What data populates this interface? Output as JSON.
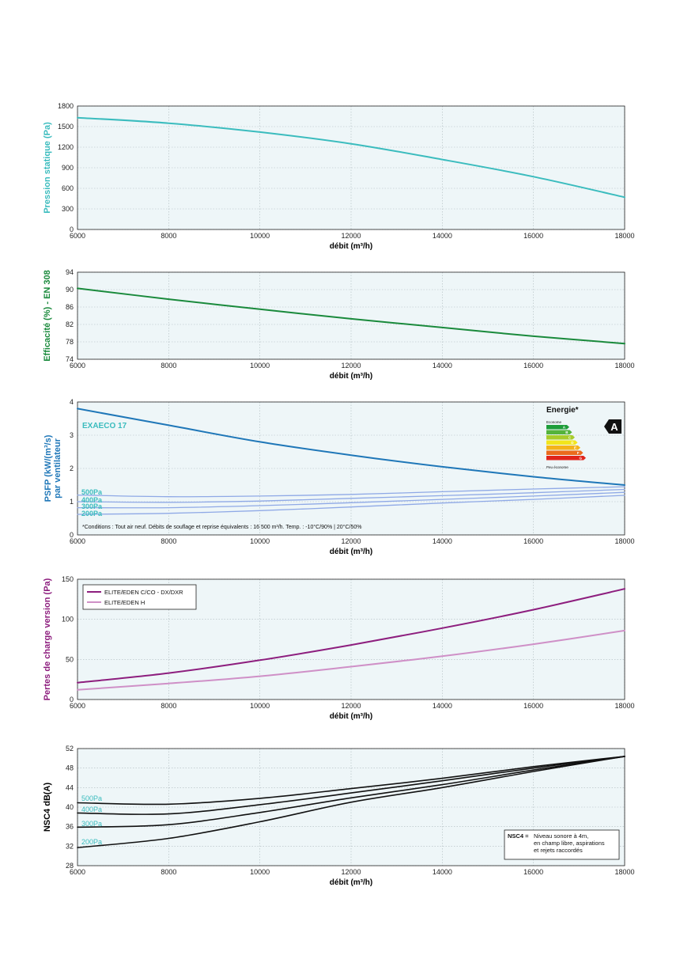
{
  "colors": {
    "panel_bg": "#eef6f8",
    "grid": "#aeb9bd",
    "pression": "#3bbcbe",
    "efficacite": "#1a8a3c",
    "psfp": "#1f77b8",
    "psfp_low": "#8fa9e6",
    "pertes": "#8d1e7e",
    "pertes_light": "#cf90c7",
    "nsc4": "#111111",
    "teal_text": "#3bbcbe"
  },
  "chart_data": [
    {
      "id": "pression",
      "type": "line",
      "title": "",
      "xlabel": "débit (m³/h)",
      "ylabel": "Pression statique (Pa)",
      "xlim": [
        6000,
        18000
      ],
      "ylim": [
        0,
        1800
      ],
      "xticks": [
        "6000",
        "8000",
        "10000",
        "12000",
        "14000",
        "16000",
        "18000"
      ],
      "yticks": [
        "0",
        "300",
        "600",
        "900",
        "1200",
        "1500",
        "1800"
      ],
      "grid": true,
      "series": [
        {
          "name": "",
          "color": "pression",
          "width": 2,
          "x": [
            6000,
            8000,
            10000,
            12000,
            14000,
            16000,
            18000
          ],
          "y": [
            1630,
            1550,
            1420,
            1250,
            1020,
            770,
            470
          ]
        }
      ]
    },
    {
      "id": "efficacite",
      "type": "line",
      "title": "",
      "xlabel": "débit (m³/h)",
      "ylabel": "Efficacité (%) - EN 308",
      "xlim": [
        6000,
        18000
      ],
      "ylim": [
        74,
        94
      ],
      "xticks": [
        "6000",
        "8000",
        "10000",
        "12000",
        "14000",
        "16000",
        "18000"
      ],
      "yticks": [
        "74",
        "78",
        "82",
        "86",
        "90",
        "94"
      ],
      "grid": true,
      "series": [
        {
          "name": "",
          "color": "efficacite",
          "width": 2,
          "x": [
            6000,
            8000,
            10000,
            12000,
            14000,
            16000,
            18000
          ],
          "y": [
            90.3,
            87.8,
            85.5,
            83.3,
            81.3,
            79.3,
            77.6
          ]
        }
      ]
    },
    {
      "id": "psfp",
      "type": "line",
      "title": "",
      "xlabel": "débit (m³/h)",
      "ylabel": "PSFP (kW/(m³/s)",
      "ylabel2": "par ventilateur",
      "xlim": [
        6000,
        18000
      ],
      "ylim": [
        0,
        4
      ],
      "xticks": [
        "6000",
        "8000",
        "10000",
        "12000",
        "14000",
        "16000",
        "18000"
      ],
      "yticks": [
        "0",
        "1",
        "2",
        "3",
        "4"
      ],
      "grid": true,
      "series": [
        {
          "name": "EXAECO 17",
          "color": "psfp",
          "width": 2,
          "x": [
            6000,
            8000,
            10000,
            12000,
            14000,
            16000,
            18000
          ],
          "y": [
            3.8,
            3.3,
            2.8,
            2.4,
            2.05,
            1.75,
            1.5
          ]
        },
        {
          "name": "500Pa",
          "color": "psfp_low",
          "width": 1.3,
          "x": [
            6000,
            8000,
            10000,
            12000,
            14000,
            16000,
            18000
          ],
          "y": [
            1.2,
            1.15,
            1.17,
            1.22,
            1.3,
            1.38,
            1.45
          ]
        },
        {
          "name": "400Pa",
          "color": "psfp_low",
          "width": 1.3,
          "x": [
            6000,
            8000,
            10000,
            12000,
            14000,
            16000,
            18000
          ],
          "y": [
            1.0,
            0.98,
            1.02,
            1.1,
            1.18,
            1.27,
            1.37
          ]
        },
        {
          "name": "300Pa",
          "color": "psfp_low",
          "width": 1.3,
          "x": [
            6000,
            8000,
            10000,
            12000,
            14000,
            16000,
            18000
          ],
          "y": [
            0.82,
            0.82,
            0.88,
            0.97,
            1.07,
            1.17,
            1.28
          ]
        },
        {
          "name": "200Pa",
          "color": "psfp_low",
          "width": 1.3,
          "x": [
            6000,
            8000,
            10000,
            12000,
            14000,
            16000,
            18000
          ],
          "y": [
            0.62,
            0.65,
            0.73,
            0.84,
            0.96,
            1.07,
            1.19
          ]
        }
      ],
      "series_labels": [
        "500Pa",
        "400Pa",
        "300Pa",
        "200Pa"
      ],
      "annotation_curve": "EXAECO 17",
      "note": "*Conditions : Tout air neuf. Débits de souflage et reprise équivalents : 16 500 m³/h. Temp. : -10°C/90% | 20°C/50%",
      "energy": {
        "title": "Energie*",
        "top_label": "Econome",
        "bottom_label": "Peu économe",
        "rating": "A",
        "class_letters": [
          "A",
          "B",
          "C",
          "D",
          "E",
          "F",
          "G"
        ],
        "class_colors": [
          "#1e9d3a",
          "#54b33c",
          "#a8cc2b",
          "#f2e51c",
          "#f4b31a",
          "#eb6a1d",
          "#e0241b"
        ]
      }
    },
    {
      "id": "pertes",
      "type": "line",
      "title": "",
      "xlabel": "débit (m³/h)",
      "ylabel": "Pertes de charge version (Pa)",
      "xlim": [
        6000,
        18000
      ],
      "ylim": [
        0,
        150
      ],
      "xticks": [
        "6000",
        "8000",
        "10000",
        "12000",
        "14000",
        "16000",
        "18000"
      ],
      "yticks": [
        "0",
        "50",
        "100",
        "150"
      ],
      "grid": true,
      "legend": "top-left",
      "series": [
        {
          "name": "ELITE/EDEN C/CO - DX/DXR",
          "color": "pertes",
          "width": 2,
          "x": [
            6000,
            8000,
            10000,
            12000,
            14000,
            16000,
            18000
          ],
          "y": [
            21,
            33,
            49,
            68,
            89,
            112,
            138
          ]
        },
        {
          "name": "ELITE/EDEN H",
          "color": "pertes_light",
          "width": 2,
          "x": [
            6000,
            8000,
            10000,
            12000,
            14000,
            16000,
            18000
          ],
          "y": [
            12,
            20,
            29,
            41,
            54,
            69,
            86
          ]
        }
      ]
    },
    {
      "id": "nsc4",
      "type": "line",
      "title": "",
      "xlabel": "débit (m³/h)",
      "ylabel": "NSC4 dB(A)",
      "xlim": [
        6000,
        18000
      ],
      "ylim": [
        28,
        52
      ],
      "xticks": [
        "6000",
        "8000",
        "10000",
        "12000",
        "14000",
        "16000",
        "18000"
      ],
      "yticks": [
        "28",
        "32",
        "36",
        "40",
        "44",
        "48",
        "52"
      ],
      "grid": true,
      "series": [
        {
          "name": "500Pa",
          "color": "nsc4",
          "width": 1.6,
          "x": [
            6000,
            8000,
            10000,
            12000,
            14000,
            16000,
            18000
          ],
          "y": [
            40.9,
            40.6,
            41.8,
            43.8,
            45.9,
            48.3,
            50.4
          ]
        },
        {
          "name": "400Pa",
          "color": "nsc4",
          "width": 1.6,
          "x": [
            6000,
            8000,
            10000,
            12000,
            14000,
            16000,
            18000
          ],
          "y": [
            38.8,
            38.6,
            40.5,
            42.9,
            45.4,
            48.0,
            50.4
          ]
        },
        {
          "name": "300Pa",
          "color": "nsc4",
          "width": 1.6,
          "x": [
            6000,
            8000,
            10000,
            12000,
            14000,
            16000,
            18000
          ],
          "y": [
            35.9,
            36.4,
            38.9,
            41.9,
            44.6,
            47.6,
            50.4
          ]
        },
        {
          "name": "200Pa",
          "color": "nsc4",
          "width": 1.6,
          "x": [
            6000,
            8000,
            10000,
            12000,
            14000,
            16000,
            18000
          ],
          "y": [
            31.7,
            33.6,
            37.0,
            41.0,
            44.0,
            47.3,
            50.4
          ]
        }
      ],
      "series_labels": [
        "500Pa",
        "400Pa",
        "300Pa",
        "200Pa"
      ],
      "note_key": "NSC4 =",
      "note_lines": [
        "Niveau sonore à 4m,",
        "en champ libre, aspirations",
        "et rejets raccordés"
      ]
    }
  ]
}
